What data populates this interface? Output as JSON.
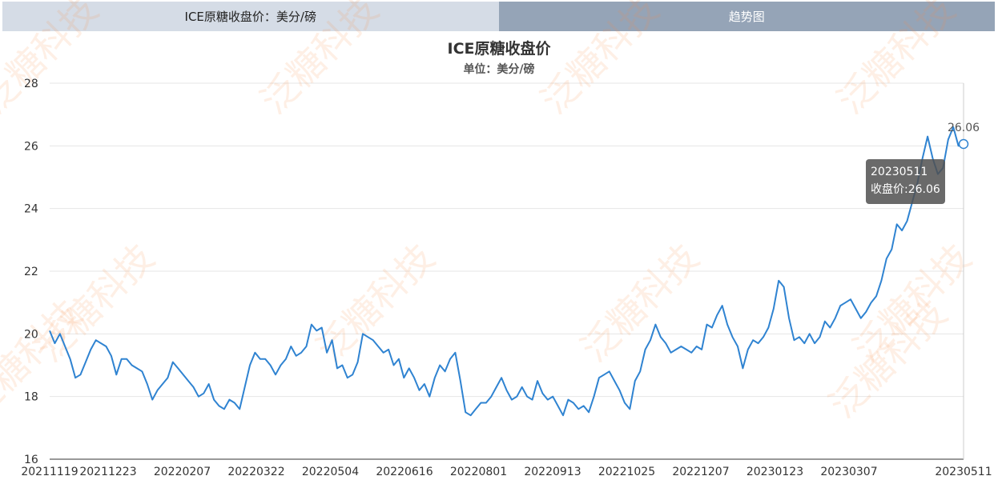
{
  "tabs": [
    {
      "label": "ICE原糖收盘价：美分/磅",
      "active": true
    },
    {
      "label": "趋势图",
      "active": false
    }
  ],
  "colors": {
    "line": "#2f83d1",
    "tab_active_bg": "#d5dce6",
    "tab_inactive_bg": "#95a4b7"
  },
  "watermark": "泛糖科技",
  "tooltip": {
    "date": "20230511",
    "label": "收盘价:26.06"
  },
  "chart_data": {
    "type": "line",
    "title": "ICE原糖收盘价",
    "subtitle": "单位：美分/磅",
    "ylim": [
      16,
      28
    ],
    "y_ticks": [
      16,
      18,
      20,
      22,
      24,
      26,
      28
    ],
    "x_ticks": [
      "20211119",
      "20211223",
      "20220207",
      "20220322",
      "20220504",
      "20220616",
      "20220801",
      "20220913",
      "20221025",
      "20221207",
      "20230123",
      "20230307",
      "20230511"
    ],
    "grid": true,
    "last_point_label": "26.06",
    "series": [
      {
        "values": [
          20.1,
          19.7,
          20.0,
          19.6,
          19.2,
          18.6,
          18.7,
          19.1,
          19.5,
          19.8,
          19.7,
          19.6,
          19.3,
          18.7,
          19.2,
          19.2,
          19.0,
          18.9,
          18.8,
          18.4,
          17.9,
          18.2,
          18.4,
          18.6,
          19.1,
          18.9,
          18.7,
          18.5,
          18.3,
          18.0,
          18.1,
          18.4,
          17.9,
          17.7,
          17.6,
          17.9,
          17.8,
          17.6,
          18.3,
          19.0,
          19.4,
          19.2,
          19.2,
          19.0,
          18.7,
          19.0,
          19.2,
          19.6,
          19.3,
          19.4,
          19.6,
          20.3,
          20.1,
          20.2,
          19.4,
          19.8,
          18.9,
          19.0,
          18.6,
          18.7,
          19.1,
          20.0,
          19.9,
          19.8,
          19.6,
          19.4,
          19.5,
          19.0,
          19.2,
          18.6,
          18.9,
          18.6,
          18.2,
          18.4,
          18.0,
          18.6,
          19.0,
          18.8,
          19.2,
          19.4,
          18.5,
          17.5,
          17.4,
          17.6,
          17.8,
          17.8,
          18.0,
          18.3,
          18.6,
          18.2,
          17.9,
          18.0,
          18.3,
          18.0,
          17.9,
          18.5,
          18.1,
          17.9,
          18.0,
          17.7,
          17.4,
          17.9,
          17.8,
          17.6,
          17.7,
          17.5,
          18.0,
          18.6,
          18.7,
          18.8,
          18.5,
          18.2,
          17.8,
          17.6,
          18.5,
          18.8,
          19.5,
          19.8,
          20.3,
          19.9,
          19.7,
          19.4,
          19.5,
          19.6,
          19.5,
          19.4,
          19.6,
          19.5,
          20.3,
          20.2,
          20.6,
          20.9,
          20.3,
          19.9,
          19.6,
          18.9,
          19.5,
          19.8,
          19.7,
          19.9,
          20.2,
          20.8,
          21.7,
          21.5,
          20.5,
          19.8,
          19.9,
          19.7,
          20.0,
          19.7,
          19.9,
          20.4,
          20.2,
          20.5,
          20.9,
          21.0,
          21.1,
          20.8,
          20.5,
          20.7,
          21.0,
          21.2,
          21.7,
          22.4,
          22.7,
          23.5,
          23.3,
          23.6,
          24.2,
          24.8,
          25.6,
          26.3,
          25.6,
          25.1,
          25.3,
          26.2,
          26.6,
          26.0,
          26.06
        ]
      }
    ]
  }
}
